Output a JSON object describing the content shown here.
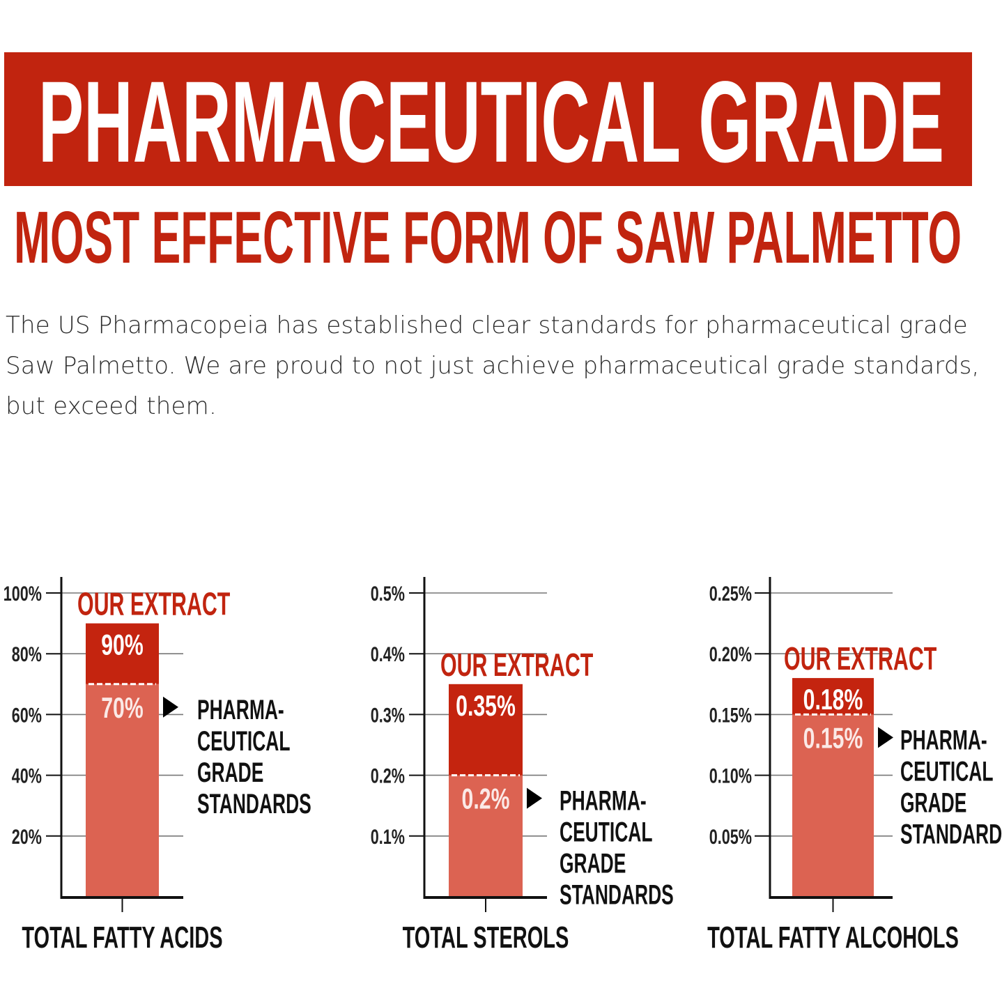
{
  "header": {
    "title": "PHARMACEUTICAL GRADE",
    "subtitle": "MOST EFFECTIVE FORM OF SAW PALMETTO",
    "intro": "The US Pharmacopeia has established clear standards for pharmaceutical grade Saw Palmetto. We are proud to not just achieve pharmaceutical grade standards, but exceed them."
  },
  "colors": {
    "brand_red": "#c1240f",
    "extract_bar": "#c4240f",
    "standard_bar": "#dc6352",
    "axis": "#111111",
    "grid": "#777777"
  },
  "chart_data": [
    {
      "type": "bar",
      "category": "TOTAL FATTY ACIDS",
      "ylim": [
        0,
        100
      ],
      "yticks": [
        20,
        40,
        60,
        80,
        100
      ],
      "ytick_labels": [
        "20%",
        "40%",
        "60%",
        "80%",
        "100%"
      ],
      "grid": true,
      "series": [
        {
          "name": "OUR EXTRACT",
          "value": 90,
          "label": "90%"
        },
        {
          "name": "PHARMACEUTICAL GRADE STANDARDS",
          "value": 70,
          "label": "70%"
        }
      ],
      "annotation_extract": "OUR EXTRACT",
      "annotation_standard": [
        "PHARMA-",
        "CEUTICAL",
        "GRADE",
        "STANDARDS"
      ]
    },
    {
      "type": "bar",
      "category": "TOTAL STEROLS",
      "ylim": [
        0,
        0.5
      ],
      "yticks": [
        0.1,
        0.2,
        0.3,
        0.4,
        0.5
      ],
      "ytick_labels": [
        "0.1%",
        "0.2%",
        "0.3%",
        "0.4%",
        "0.5%"
      ],
      "grid": true,
      "series": [
        {
          "name": "OUR EXTRACT",
          "value": 0.35,
          "label": "0.35%"
        },
        {
          "name": "PHARMACEUTICAL GRADE STANDARDS",
          "value": 0.2,
          "label": "0.2%"
        }
      ],
      "annotation_extract": "OUR EXTRACT",
      "annotation_standard": [
        "PHARMA-",
        "CEUTICAL",
        "GRADE",
        "STANDARDS"
      ]
    },
    {
      "type": "bar",
      "category": "TOTAL FATTY ALCOHOLS",
      "ylim": [
        0,
        0.25
      ],
      "yticks": [
        0.05,
        0.1,
        0.15,
        0.2,
        0.25
      ],
      "ytick_labels": [
        "0.05%",
        "0.10%",
        "0.15%",
        "0.20%",
        "0.25%"
      ],
      "grid": true,
      "series": [
        {
          "name": "OUR EXTRACT",
          "value": 0.18,
          "label": "0.18%"
        },
        {
          "name": "PHARMACEUTICAL GRADE STANDARDS",
          "value": 0.15,
          "label": "0.15%"
        }
      ],
      "annotation_extract": "OUR EXTRACT",
      "annotation_standard": [
        "PHARMA-",
        "CEUTICAL",
        "GRADE",
        "STANDARDS"
      ]
    }
  ]
}
